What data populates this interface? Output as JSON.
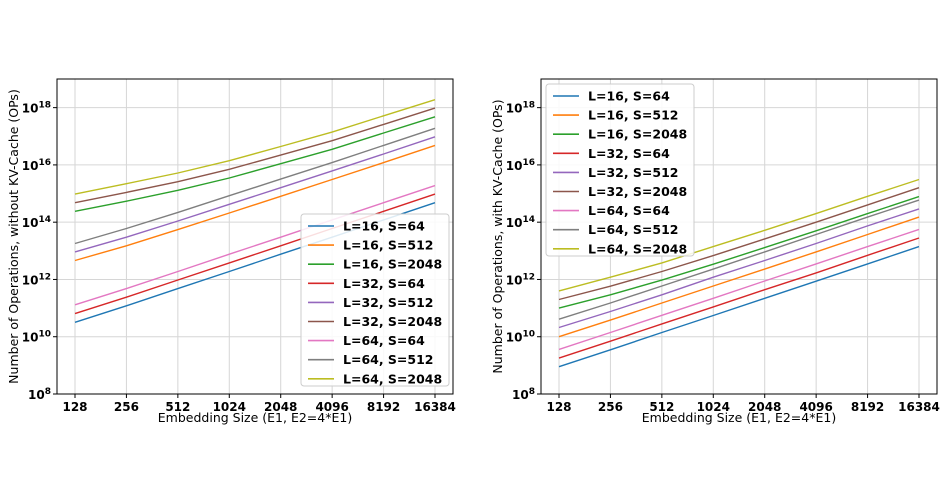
{
  "colors": [
    "#1f77b4",
    "#ff7f0e",
    "#2ca02c",
    "#d62728",
    "#9467bd",
    "#8c564b",
    "#e377c2",
    "#7f7f7f",
    "#bcbd22"
  ],
  "chart_data": [
    {
      "type": "line",
      "xscale": "log2",
      "yscale": "log10",
      "categories": [
        "128",
        "256",
        "512",
        "1024",
        "2048",
        "4096",
        "8192",
        "16384"
      ],
      "x": [
        128,
        256,
        512,
        1024,
        2048,
        4096,
        8192,
        16384
      ],
      "xlabel": "Embedding Size (E1, E2=4*E1)",
      "ylabel": "Number of Operations, without KV-Cache (OPs)",
      "ylim": [
        100000000.0,
        1e+19
      ],
      "yticks": [
        {
          "exp": 8,
          "label": "10^8"
        },
        {
          "exp": 10,
          "label": "10^10"
        },
        {
          "exp": 12,
          "label": "10^12"
        },
        {
          "exp": 14,
          "label": "10^14"
        },
        {
          "exp": 16,
          "label": "10^16"
        },
        {
          "exp": 18,
          "label": "10^18"
        }
      ],
      "grid": true,
      "legend_position": "lower-right",
      "series": [
        {
          "name": "L=16, S=64",
          "values": [
            32000000000.0,
            120000000000.0,
            480000000000.0,
            1900000000000.0,
            7600000000000.0,
            30000000000000.0,
            120000000000000.0,
            480000000000000.0
          ]
        },
        {
          "name": "L=16, S=512",
          "values": [
            4600000000000.0,
            15000000000000.0,
            55000000000000.0,
            210000000000000.0,
            800000000000000.0,
            3100000000000000.0,
            1.2e+16,
            4.8e+16
          ]
        },
        {
          "name": "L=16, S=2048",
          "values": [
            240000000000000.0,
            540000000000000.0,
            1300000000000000.0,
            3500000000000000.0,
            1.1e+16,
            3.5e+16,
            1.3e+17,
            4.8e+17
          ]
        },
        {
          "name": "L=32, S=64",
          "values": [
            64000000000.0,
            240000000000.0,
            960000000000.0,
            3800000000000.0,
            15000000000000.0,
            60000000000000.0,
            240000000000000.0,
            960000000000000.0
          ]
        },
        {
          "name": "L=32, S=512",
          "values": [
            9200000000000.0,
            30000000000000.0,
            110000000000000.0,
            420000000000000.0,
            1600000000000000.0,
            6200000000000000.0,
            2.4e+16,
            9.6e+16
          ]
        },
        {
          "name": "L=32, S=2048",
          "values": [
            480000000000000.0,
            1100000000000000.0,
            2600000000000000.0,
            7000000000000000.0,
            2.2e+16,
            7e+16,
            2.6e+17,
            9.6e+17
          ]
        },
        {
          "name": "L=64, S=64",
          "values": [
            130000000000.0,
            480000000000.0,
            1900000000000.0,
            7600000000000.0,
            30000000000000.0,
            120000000000000.0,
            480000000000000.0,
            1900000000000000.0
          ]
        },
        {
          "name": "L=64, S=512",
          "values": [
            18000000000000.0,
            60000000000000.0,
            220000000000000.0,
            840000000000000.0,
            3200000000000000.0,
            1.2e+16,
            4.8e+16,
            1.9e+17
          ]
        },
        {
          "name": "L=64, S=2048",
          "values": [
            960000000000000.0,
            2200000000000000.0,
            5200000000000000.0,
            1.4e+16,
            4.4e+16,
            1.4e+17,
            5.2e+17,
            1.9e+18
          ]
        }
      ]
    },
    {
      "type": "line",
      "xscale": "log2",
      "yscale": "log10",
      "categories": [
        "128",
        "256",
        "512",
        "1024",
        "2048",
        "4096",
        "8192",
        "16384"
      ],
      "x": [
        128,
        256,
        512,
        1024,
        2048,
        4096,
        8192,
        16384
      ],
      "xlabel": "Embedding Size (E1, E2=4*E1)",
      "ylabel": "Number of Operations, with KV-Cache (OPs)",
      "ylim": [
        100000000.0,
        1e+19
      ],
      "yticks": [
        {
          "exp": 8,
          "label": "10^8"
        },
        {
          "exp": 10,
          "label": "10^10"
        },
        {
          "exp": 12,
          "label": "10^12"
        },
        {
          "exp": 14,
          "label": "10^14"
        },
        {
          "exp": 16,
          "label": "10^16"
        },
        {
          "exp": 18,
          "label": "10^18"
        }
      ],
      "grid": true,
      "legend_position": "upper-left",
      "series": [
        {
          "name": "L=16, S=64",
          "values": [
            900000000.0,
            3500000000.0,
            14000000000.0,
            55000000000.0,
            220000000000.0,
            870000000000.0,
            3500000000000.0,
            14000000000000.0
          ]
        },
        {
          "name": "L=16, S=512",
          "values": [
            10000000000.0,
            38000000000.0,
            150000000000.0,
            590000000000.0,
            2300000000000.0,
            9200000000000.0,
            37000000000000.0,
            150000000000000.0
          ]
        },
        {
          "name": "L=16, S=2048",
          "values": [
            100000000000.0,
            290000000000.0,
            950000000000.0,
            3400000000000.0,
            13000000000000.0,
            50000000000000.0,
            200000000000000.0,
            780000000000000.0
          ]
        },
        {
          "name": "L=32, S=64",
          "values": [
            1800000000.0,
            7000000000.0,
            28000000000.0,
            110000000000.0,
            440000000000.0,
            1700000000000.0,
            7000000000000.0,
            28000000000000.0
          ]
        },
        {
          "name": "L=32, S=512",
          "values": [
            21000000000.0,
            76000000000.0,
            290000000000.0,
            1200000000000.0,
            4600000000000.0,
            18000000000000.0,
            74000000000000.0,
            290000000000000.0
          ]
        },
        {
          "name": "L=32, S=2048",
          "values": [
            200000000000.0,
            580000000000.0,
            1900000000000.0,
            6800000000000.0,
            26000000000000.0,
            100000000000000.0,
            400000000000000.0,
            1600000000000000.0
          ]
        },
        {
          "name": "L=64, S=64",
          "values": [
            3600000000.0,
            14000000000.0,
            56000000000.0,
            220000000000.0,
            880000000000.0,
            3500000000000.0,
            14000000000000.0,
            56000000000000.0
          ]
        },
        {
          "name": "L=64, S=512",
          "values": [
            41000000000.0,
            150000000000.0,
            590000000000.0,
            2300000000000.0,
            9200000000000.0,
            37000000000000.0,
            150000000000000.0,
            590000000000000.0
          ]
        },
        {
          "name": "L=64, S=2048",
          "values": [
            400000000000.0,
            1200000000000.0,
            3800000000000.0,
            14000000000000.0,
            52000000000000.0,
            200000000000000.0,
            800000000000000.0,
            3100000000000000.0
          ]
        }
      ]
    }
  ]
}
